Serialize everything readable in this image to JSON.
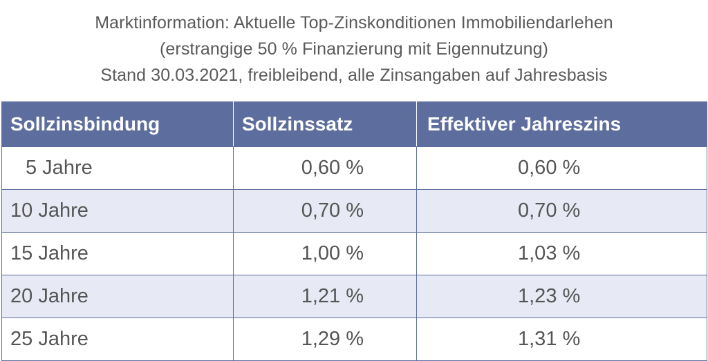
{
  "header": {
    "line1": "Marktinformation: Aktuelle Top-Zinskonditionen Immobiliendarlehen",
    "line2": "(erstrangige 50 % Finanzierung mit Eigennutzung)",
    "line3": "Stand 30.03.2021, freibleibend, alle Zinsangaben auf Jahresbasis"
  },
  "table": {
    "columns": [
      "Sollzinsbindung",
      "Sollzinssatz",
      "Effektiver Jahreszins"
    ],
    "rows": [
      {
        "term": "5 Jahre",
        "sollzins": "0,60 %",
        "effektiv": "0,60 %"
      },
      {
        "term": "10 Jahre",
        "sollzins": "0,70 %",
        "effektiv": "0,70 %"
      },
      {
        "term": "15 Jahre",
        "sollzins": "1,00 %",
        "effektiv": "1,03 %"
      },
      {
        "term": "20 Jahre",
        "sollzins": "1,21 %",
        "effektiv": "1,23 %"
      },
      {
        "term": "25 Jahre",
        "sollzins": "1,29 %",
        "effektiv": "1,31 %"
      }
    ]
  },
  "colors": {
    "header_bg": "#5d6e9e",
    "alt_row_bg": "#e7e9f4",
    "title_text": "#5a5a5a",
    "cell_text": "#555555"
  }
}
